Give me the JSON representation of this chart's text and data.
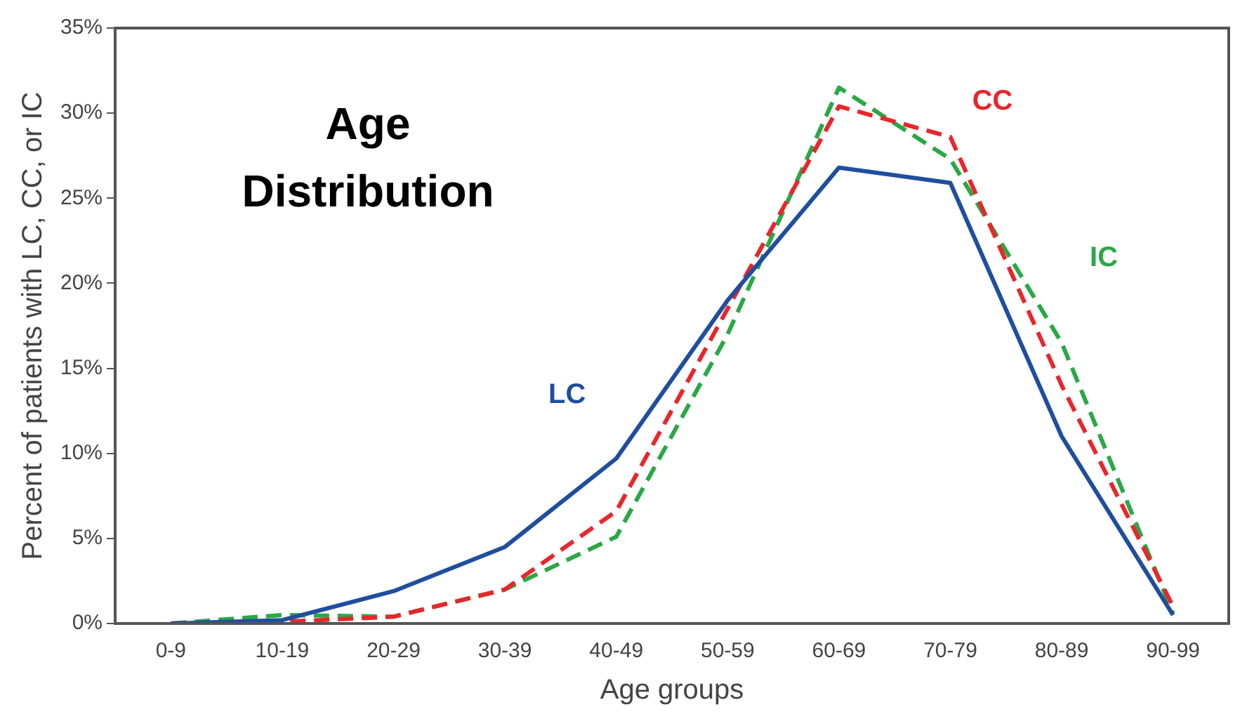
{
  "chart_data": {
    "type": "line",
    "title": "Age Distribution",
    "xlabel": "Age groups",
    "ylabel": "Percent of patients with LC, CC, or IC",
    "categories": [
      "0-9",
      "10-19",
      "20-29",
      "30-39",
      "40-49",
      "50-59",
      "60-69",
      "70-79",
      "80-89",
      "90-99"
    ],
    "series": [
      {
        "name": "LC",
        "color": "#1f4e9e",
        "line_style": "solid",
        "values": [
          0,
          0.2,
          1.9,
          4.5,
          9.7,
          19,
          26.8,
          25.9,
          11,
          0.5
        ]
      },
      {
        "name": "CC",
        "color": "#e8262b",
        "line_style": "dashed",
        "values": [
          0,
          0.1,
          0.4,
          2,
          6.6,
          18.5,
          30.4,
          28.6,
          14,
          1
        ]
      },
      {
        "name": "IC",
        "color": "#2aa845",
        "line_style": "dashed",
        "values": [
          0,
          0.5,
          0.4,
          2,
          5.1,
          17,
          31.5,
          27.3,
          16.5,
          0.6
        ]
      }
    ],
    "ylim": [
      0,
      35
    ],
    "yticks": [
      {
        "value": 0,
        "label": "0%"
      },
      {
        "value": 5,
        "label": "5%"
      },
      {
        "value": 10,
        "label": "10%"
      },
      {
        "value": 15,
        "label": "15%"
      },
      {
        "value": 20,
        "label": "20%"
      },
      {
        "value": 25,
        "label": "25%"
      },
      {
        "value": 30,
        "label": "30%"
      },
      {
        "value": 35,
        "label": "35%"
      }
    ],
    "grid": false,
    "legend": false,
    "marker": "none"
  }
}
